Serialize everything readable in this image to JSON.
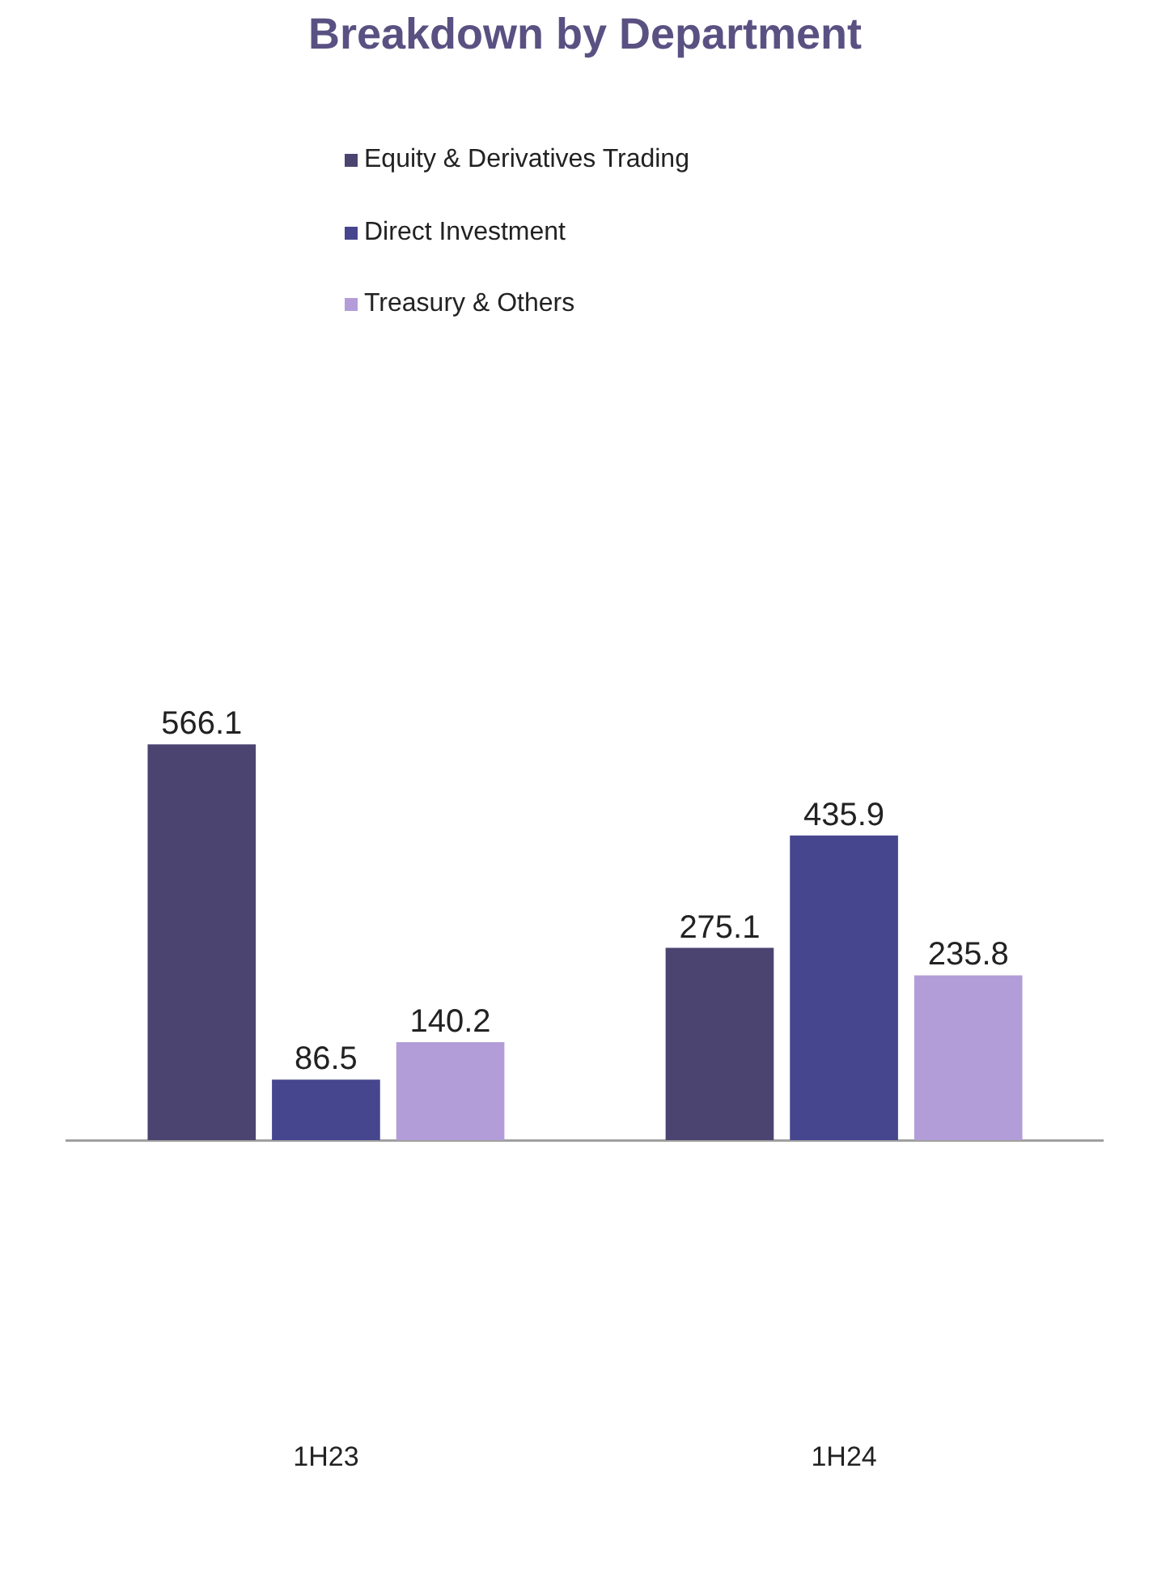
{
  "chart_data": {
    "type": "bar",
    "title": "Breakdown by Department",
    "categories": [
      "1H23",
      "1H24"
    ],
    "series": [
      {
        "name": "Equity & Derivatives Trading",
        "color": "#4b4470",
        "values": [
          566.1,
          275.1
        ]
      },
      {
        "name": "Direct Investment",
        "color": "#46468e",
        "values": [
          86.5,
          435.9
        ]
      },
      {
        "name": "Treasury & Others",
        "color": "#b39dd8",
        "values": [
          140.2,
          235.8
        ]
      }
    ],
    "data_labels": true,
    "legend": "top",
    "grid": false
  }
}
